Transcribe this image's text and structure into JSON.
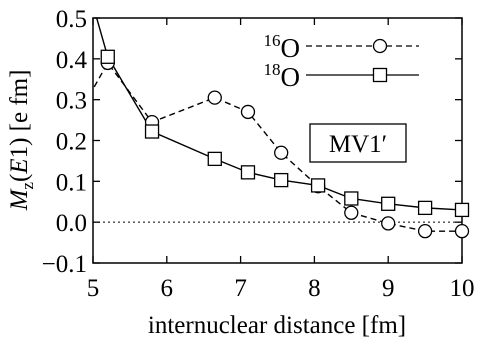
{
  "chart_data": {
    "type": "line",
    "xlabel": "internuclear distance [fm]",
    "ylabel_parts": [
      "M",
      "z",
      "(",
      "E",
      "1) [e fm]"
    ],
    "xlim": [
      5,
      10
    ],
    "ylim": [
      -0.1,
      0.5
    ],
    "x_ticks": [
      5,
      6,
      7,
      8,
      9,
      10
    ],
    "y_ticks": [
      -0.1,
      0.0,
      0.1,
      0.2,
      0.3,
      0.4,
      0.5
    ],
    "x_tick_labels": [
      "5",
      "6",
      "7",
      "8",
      "9",
      "10"
    ],
    "y_tick_labels": [
      "−0.1",
      "0.0",
      "0.1",
      "0.2",
      "0.3",
      "0.4",
      "0.5"
    ],
    "zero_line": true,
    "legend_placement": "top-right",
    "annotation": "MV1′",
    "series": [
      {
        "legend_sup": "16",
        "legend_base": "O",
        "marker": "circle",
        "line_style": "dashed",
        "color": "#000000",
        "line_x": [
          4.95,
          5.2,
          5.8,
          6.65,
          7.1,
          7.55,
          8.05,
          8.5,
          9.0,
          9.5,
          10.0
        ],
        "line_y": [
          0.31,
          0.39,
          0.245,
          0.305,
          0.27,
          0.17,
          0.088,
          0.023,
          -0.003,
          -0.022,
          -0.022
        ],
        "marker_x": [
          5.2,
          5.8,
          6.65,
          7.1,
          7.55,
          8.05,
          8.5,
          9.0,
          9.5,
          10.0
        ],
        "marker_y": [
          0.39,
          0.245,
          0.305,
          0.27,
          0.17,
          0.088,
          0.023,
          -0.003,
          -0.022,
          -0.022
        ]
      },
      {
        "legend_sup": "18",
        "legend_base": "O",
        "marker": "square",
        "line_style": "solid",
        "color": "#000000",
        "line_x": [
          5.05,
          5.2,
          5.8,
          6.65,
          7.1,
          7.55,
          8.05,
          8.5,
          9.0,
          9.5,
          10.0
        ],
        "line_y": [
          0.5,
          0.405,
          0.222,
          0.155,
          0.122,
          0.103,
          0.09,
          0.058,
          0.045,
          0.035,
          0.03
        ],
        "marker_x": [
          5.2,
          5.8,
          6.65,
          7.1,
          7.55,
          8.05,
          8.5,
          9.0,
          9.5,
          10.0
        ],
        "marker_y": [
          0.405,
          0.222,
          0.155,
          0.122,
          0.103,
          0.09,
          0.058,
          0.045,
          0.035,
          0.03
        ]
      }
    ]
  }
}
